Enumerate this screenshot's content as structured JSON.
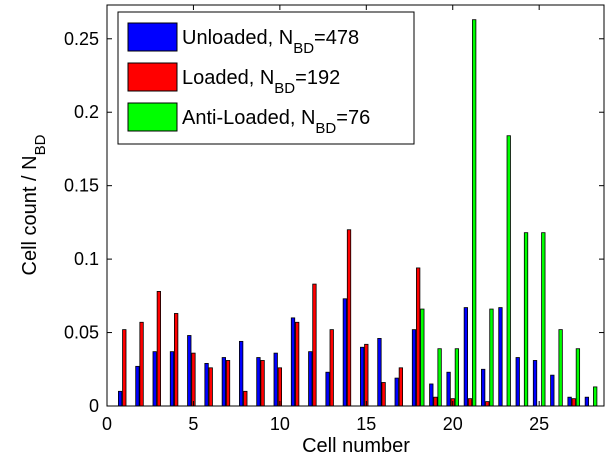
{
  "chart_data": {
    "type": "bar",
    "xlabel": "Cell number",
    "ylabel": "Cell count / N_{BD}",
    "x": [
      1,
      2,
      3,
      4,
      5,
      6,
      7,
      8,
      9,
      10,
      11,
      12,
      13,
      14,
      15,
      16,
      17,
      18,
      19,
      20,
      21,
      22,
      23,
      24,
      25,
      26,
      27,
      28
    ],
    "series": [
      {
        "name": "Unloaded, N_{BD}=478",
        "color": "#0000ff",
        "values": [
          0.01,
          0.027,
          0.037,
          0.037,
          0.048,
          0.029,
          0.033,
          0.044,
          0.033,
          0.036,
          0.06,
          0.037,
          0.023,
          0.073,
          0.04,
          0.046,
          0.019,
          0.052,
          0.015,
          0.023,
          0.067,
          0.025,
          0.067,
          0.033,
          0.031,
          0.021,
          0.006,
          0.006
        ]
      },
      {
        "name": "Loaded, N_{BD}=192",
        "color": "#ff0000",
        "values": [
          0.052,
          0.057,
          0.078,
          0.063,
          0.036,
          0.026,
          0.031,
          0.01,
          0.031,
          0.026,
          0.057,
          0.083,
          0.052,
          0.12,
          0.042,
          0.016,
          0.026,
          0.094,
          0.006,
          0.005,
          0.005,
          0.003,
          0,
          0,
          0,
          0,
          0.005,
          0
        ]
      },
      {
        "name": "Anti-Loaded, N_{BD}=76",
        "color": "#00ff00",
        "values": [
          0,
          0,
          0,
          0,
          0,
          0,
          0,
          0,
          0,
          0,
          0,
          0,
          0,
          0,
          0,
          0,
          0,
          0.066,
          0.039,
          0.039,
          0.263,
          0.066,
          0.184,
          0.118,
          0.118,
          0.052,
          0.039,
          0.013
        ]
      }
    ],
    "xlim": [
      0,
      28.75
    ],
    "xticks": [
      0,
      5,
      10,
      15,
      20,
      25
    ],
    "ylim": [
      0,
      0.273
    ],
    "yticks": [
      0,
      0.05,
      0.1,
      0.15,
      0.2,
      0.25
    ],
    "legend": "upper-left"
  }
}
